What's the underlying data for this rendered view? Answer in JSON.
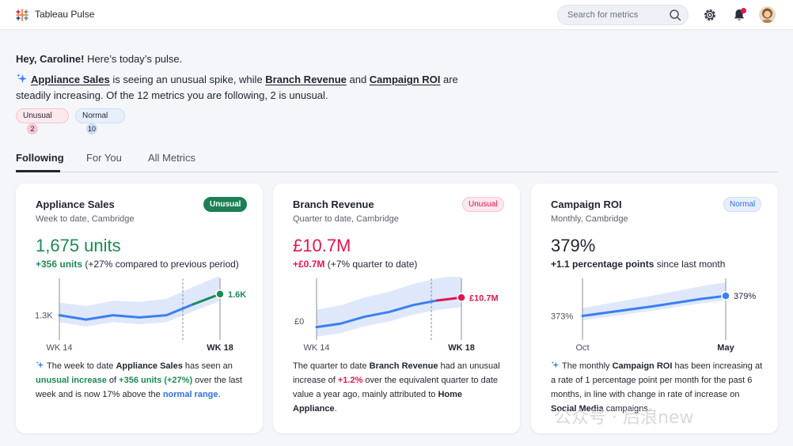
{
  "app": {
    "title": "Tableau Pulse"
  },
  "header": {
    "search_placeholder": "Search for metrics"
  },
  "greeting": {
    "hey": "Hey, Caroline!",
    "rest": " Here’s today’s pulse."
  },
  "summary": {
    "metric1": "Appliance Sales",
    "text1": " is seeing an unusual spike, while ",
    "metric2": "Branch Revenue",
    "text2": " and ",
    "metric3": "Campaign ROI",
    "text3": " are steadily increasing. Of the 12 metrics you are following, 2 is unusual."
  },
  "chips": {
    "unusual": {
      "label": "Unusual",
      "count": "2"
    },
    "normal": {
      "label": "Normal",
      "count": "10"
    }
  },
  "tabs": [
    "Following",
    "For You",
    "All Metrics"
  ],
  "cards": [
    {
      "title": "Appliance Sales",
      "subtitle": "Week to date, Cambridge",
      "badge": "Unusual",
      "value": "1,675 units",
      "delta_strong": "+356 units",
      "delta_rest": " (+27% compared to previous period)",
      "y_label": "1.3K",
      "end_label": "1.6K",
      "x_start": "WK 14",
      "x_end": "WK 18",
      "desc": {
        "a": "The week to date ",
        "b": "Appliance Sales",
        "c": " has seen an ",
        "d": "unusual increase",
        "e": " of ",
        "f": "+356 units (+27%)",
        "g": " over the last week and is now 17% above the ",
        "h": "normal range",
        "i": "."
      }
    },
    {
      "title": "Branch Revenue",
      "subtitle": "Quarter to date, Cambridge",
      "badge": "Unusual",
      "value": "£10.7M",
      "delta_strong": "+£0.7M",
      "delta_rest": " (+7% quarter to date)",
      "y_label": "£0",
      "end_label": "£10.7M",
      "x_start": "WK 14",
      "x_end": "WK 18",
      "desc": {
        "a": "The quarter to date ",
        "b": "Branch Revenue",
        "c": " had an unusual increase of ",
        "d": "+1.2%",
        "e": " over the equivalent quarter to date value a year ago, mainly attributed to ",
        "f": "Home Appliance",
        "g": "."
      }
    },
    {
      "title": "Campaign ROI",
      "subtitle": "Monthly, Cambridge",
      "badge": "Normal",
      "value": "379%",
      "delta_strong": "+1.1 percentage points",
      "delta_rest": " since last month",
      "y_label": "373%",
      "end_label": "379%",
      "x_start": "Oct",
      "x_end": "May",
      "desc": {
        "a": "The monthly ",
        "b": "Campaign ROI",
        "c": " has been increasing at a rate of 1 percentage point per month for the past 6 months, in line with change in rate of increase on ",
        "d": "Social Media",
        "e": " campaigns."
      }
    }
  ],
  "chart_data": [
    {
      "type": "line",
      "x": [
        "WK 14",
        "",
        "",
        "",
        "",
        "",
        "WK 18"
      ],
      "series": [
        {
          "values": [
            1.31,
            1.25,
            1.31,
            1.28,
            1.31,
            1.46,
            1.6
          ]
        }
      ],
      "ylim": [
        1.1,
        1.75
      ]
    },
    {
      "type": "line",
      "x": [
        "WK 14",
        "",
        "",
        "",
        "",
        "",
        "WK 18"
      ],
      "series": [
        {
          "values": [
            0.0,
            0.3,
            0.9,
            1.3,
            1.9,
            2.3,
            2.55
          ]
        }
      ],
      "ylim": [
        -0.3,
        3.8
      ]
    },
    {
      "type": "line",
      "x": [
        "Oct",
        "",
        "",
        "",
        "",
        "",
        "May"
      ],
      "series": [
        {
          "values": [
            373.0,
            373.9,
            374.8,
            375.7,
            376.7,
            377.7,
            378.5
          ]
        }
      ],
      "ylim": [
        369,
        382
      ]
    }
  ],
  "colors": {
    "green": "#1d8a55",
    "pink": "#e0164f",
    "blue": "#3b7ff0",
    "band": "#dfe8fb"
  },
  "watermark": "公众号 · 后浪new"
}
